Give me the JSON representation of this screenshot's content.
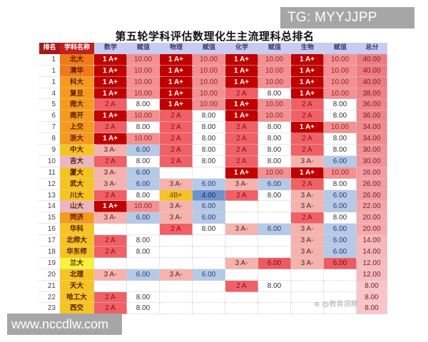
{
  "watermark_top": "TG: MYYJJPP",
  "watermark_bottom": "www.nccdlw.com",
  "watermark_source": "⊕ @教育洞察",
  "title": "第五轮学科评估数理化生主流理科总排名",
  "headers": [
    "排名",
    "学科名称",
    "数学",
    "赋值",
    "物理",
    "赋值",
    "化学",
    "赋值",
    "生物",
    "赋值",
    "总分"
  ],
  "colors": {
    "grade_1Aplus": "#c00000",
    "grade_2A": "#f06066",
    "grade_3Aminus": "#f6b3ae",
    "grade_4Bplus": "#f6c22a",
    "value_10": "#f48f92",
    "value_6": "#b6c9e6",
    "value_4": "#6d93cd",
    "header_bg": "#c9cbf0",
    "header_rank_bg": "#a51c1c"
  },
  "rows": [
    {
      "rank": "1",
      "name": "北大",
      "math": "1 A+",
      "math_v": "10.00",
      "phys": "1 A+",
      "phys_v": "10.00",
      "chem": "1 A+",
      "chem_v": "10.00",
      "bio": "1 A+",
      "bio_v": "10.00",
      "total": "40.00"
    },
    {
      "rank": "1",
      "name": "清华",
      "math": "1 A+",
      "math_v": "10.00",
      "phys": "1 A+",
      "phys_v": "10.00",
      "chem": "1 A+",
      "chem_v": "10.00",
      "bio": "1 A+",
      "bio_v": "10.00",
      "total": "40.00"
    },
    {
      "rank": "1",
      "name": "科大",
      "math": "1 A+",
      "math_v": "10.00",
      "phys": "1 A+",
      "phys_v": "10.00",
      "chem": "1 A+",
      "chem_v": "10.00",
      "bio": "1 A+",
      "bio_v": "10.00",
      "total": "40.00"
    },
    {
      "rank": "4",
      "name": "复旦",
      "math": "1 A+",
      "math_v": "10.00",
      "phys": "1 A+",
      "phys_v": "10.00",
      "chem": "2 A",
      "chem_v": "8.00",
      "bio": "1 A+",
      "bio_v": "10.00",
      "total": "38.00"
    },
    {
      "rank": "5",
      "name": "南大",
      "math": "2 A",
      "math_v": "8.00",
      "phys": "1 A+",
      "phys_v": "10.00",
      "chem": "1 A+",
      "chem_v": "10.00",
      "bio": "2 A",
      "bio_v": "8.00",
      "total": "36.00"
    },
    {
      "rank": "6",
      "name": "南开",
      "math": "1 A+",
      "math_v": "10.00",
      "phys": "2 A",
      "phys_v": "8.00",
      "chem": "1 A+",
      "chem_v": "10.00",
      "bio": "2 A",
      "bio_v": "8.00",
      "total": "36.00"
    },
    {
      "rank": "7",
      "name": "上交",
      "math": "2 A",
      "math_v": "8.00",
      "phys": "2 A",
      "phys_v": "8.00",
      "chem": "2 A",
      "chem_v": "8.00",
      "bio": "1 A+",
      "bio_v": "10.00",
      "total": "34.00"
    },
    {
      "rank": "8",
      "name": "浙大",
      "math": "1 A+",
      "math_v": "10.00",
      "phys": "2 A",
      "phys_v": "8.00",
      "chem": "2 A",
      "chem_v": "8.00",
      "bio": "2 A",
      "bio_v": "8.00",
      "total": "34.00"
    },
    {
      "rank": "9",
      "name": "中大",
      "math": "3 A-",
      "math_v": "6.00",
      "phys": "2 A",
      "phys_v": "8.00",
      "chem": "2 A",
      "chem_v": "8.00",
      "bio": "2 A",
      "bio_v": "8.00",
      "total": "30.00"
    },
    {
      "rank": "10",
      "name": "吉大",
      "math": "2 A",
      "math_v": "8.00",
      "phys": "2 A",
      "phys_v": "8.00",
      "chem": "2 A",
      "chem_v": "8.00",
      "bio": "3 A-",
      "bio_v": "6.00",
      "total": "30.00"
    },
    {
      "rank": "11",
      "name": "厦大",
      "math": "3 A-",
      "math_v": "6.00",
      "phys": "",
      "phys_v": "",
      "chem": "1 A+",
      "chem_v": "10.00",
      "bio": "1 A+",
      "bio_v": "10.00",
      "total": "26.00"
    },
    {
      "rank": "12",
      "name": "武大",
      "math": "3 A-",
      "math_v": "6.00",
      "phys": "3 A-",
      "phys_v": "6.00",
      "chem": "3 A-",
      "chem_v": "6.00",
      "bio": "2 A",
      "bio_v": "8.00",
      "total": "26.00"
    },
    {
      "rank": "13",
      "name": "川大",
      "math": "2 A",
      "math_v": "8.00",
      "phys": "4B+",
      "phys_v": "4.00",
      "chem": "2 A",
      "chem_v": "8.00",
      "bio": "3 A-",
      "bio_v": "6.00",
      "total": "26.00"
    },
    {
      "rank": "14",
      "name": "山大",
      "math": "1 A+",
      "math_v": "10.00",
      "phys": "3 A-",
      "phys_v": "6.00",
      "chem": "",
      "chem_v": "",
      "bio": "3 A-",
      "bio_v": "6.00",
      "total": "22.00"
    },
    {
      "rank": "15",
      "name": "同济",
      "math": "3 A-",
      "math_v": "6.00",
      "phys": "3 A-",
      "phys_v": "6.00",
      "chem": "",
      "chem_v": "",
      "bio": "2 A",
      "bio_v": "8.00",
      "total": "20.00"
    },
    {
      "rank": "16",
      "name": "华科",
      "math": "",
      "math_v": "",
      "phys": "2 A",
      "phys_v": "8.00",
      "chem": "3 A-",
      "chem_v": "6.00",
      "bio": "3 A-",
      "bio_v": "6.00",
      "total": "20.00"
    },
    {
      "rank": "17",
      "name": "北师大",
      "math": "2 A",
      "math_v": "8.00",
      "phys": "",
      "phys_v": "",
      "chem": "",
      "chem_v": "",
      "bio": "3 A-",
      "bio_v": "6.00",
      "total": "14.00"
    },
    {
      "rank": "18",
      "name": "华东师",
      "math": "2 A",
      "math_v": "8.00",
      "phys": "",
      "phys_v": "",
      "chem": "",
      "chem_v": "",
      "bio": "3 A-",
      "bio_v": "6.00",
      "total": "14.00"
    },
    {
      "rank": "19",
      "name": "兰大",
      "math": "",
      "math_v": "",
      "phys": "",
      "phys_v": "",
      "chem": "3 A-",
      "chem_v": "6.00",
      "bio": "3 A-",
      "bio_v": "6.00",
      "total": "12.00"
    },
    {
      "rank": "20",
      "name": "北理",
      "math": "3 A-",
      "math_v": "6.00",
      "phys": "3 A-",
      "phys_v": "6.00",
      "chem": "",
      "chem_v": "",
      "bio": "",
      "bio_v": "",
      "total": "12.00"
    },
    {
      "rank": "21",
      "name": "天大",
      "math": "",
      "math_v": "",
      "phys": "",
      "phys_v": "",
      "chem": "2 A",
      "chem_v": "8.00",
      "bio": "",
      "bio_v": "",
      "total": "8.00"
    },
    {
      "rank": "22",
      "name": "哈工大",
      "math": "2 A",
      "math_v": "8.00",
      "phys": "",
      "phys_v": "",
      "chem": "",
      "chem_v": "",
      "bio": "",
      "bio_v": "",
      "total": "8.00"
    },
    {
      "rank": "23",
      "name": "西交",
      "math": "2 A",
      "math_v": "8.00",
      "phys": "",
      "phys_v": "",
      "chem": "",
      "chem_v": "",
      "bio": "",
      "bio_v": "",
      "total": "8.00"
    }
  ]
}
